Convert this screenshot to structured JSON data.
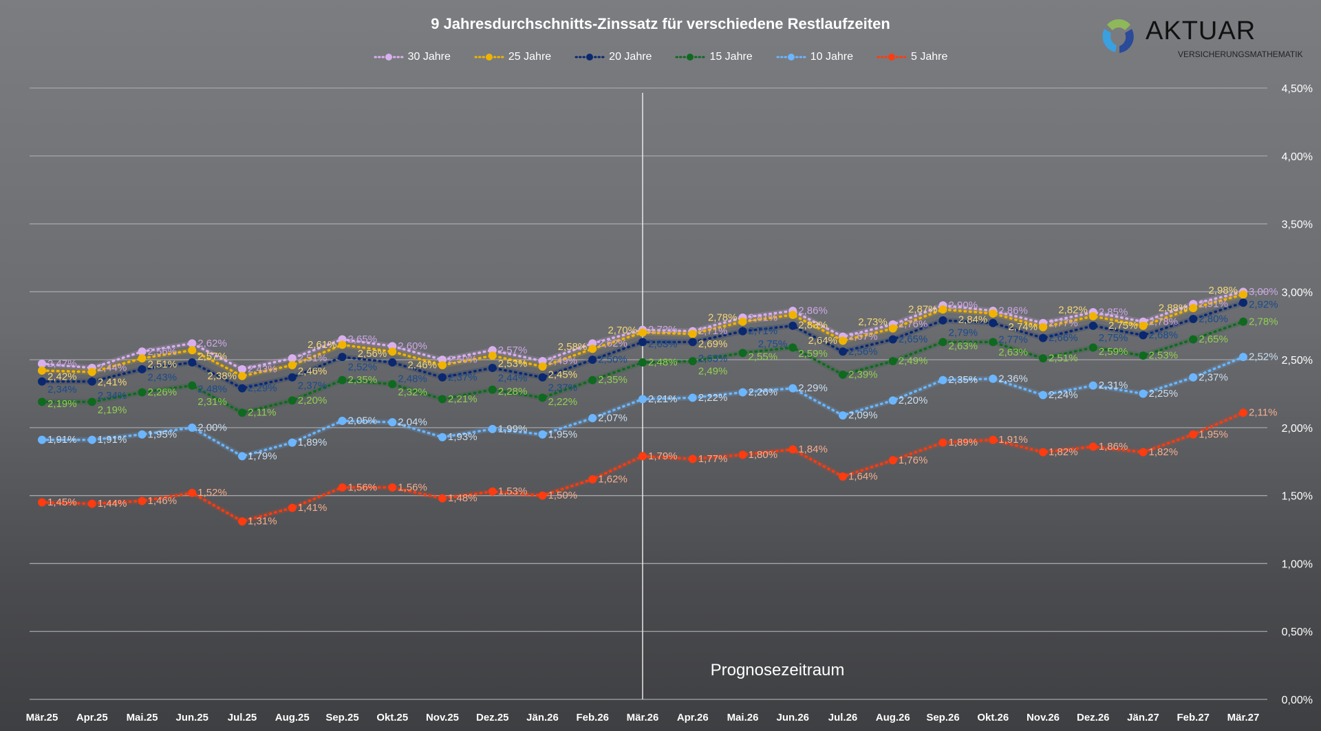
{
  "logo": {
    "name": "AKTUAR",
    "subtitle": "VERSICHERUNGSMATHEMATIK"
  },
  "chart_data": {
    "type": "line",
    "title": "9 Jahresdurchschnitts-Zinssatz für verschiedene Restlaufzeiten",
    "xlabel": "",
    "ylabel": "",
    "categories": [
      "Mär.25",
      "Apr.25",
      "Mai.25",
      "Jun.25",
      "Jul.25",
      "Aug.25",
      "Sep.25",
      "Okt.25",
      "Nov.25",
      "Dez.25",
      "Jän.26",
      "Feb.26",
      "Mär.26",
      "Apr.26",
      "Mai.26",
      "Jun.26",
      "Jul.26",
      "Aug.26",
      "Sep.26",
      "Okt.26",
      "Nov.26",
      "Dez.26",
      "Jän.27",
      "Feb.27",
      "Mär.27"
    ],
    "ylim": [
      0,
      4.5
    ],
    "y_ticks": [
      "0,00%",
      "0,50%",
      "1,00%",
      "1,50%",
      "2,00%",
      "2,50%",
      "3,00%",
      "3,50%",
      "4,00%",
      "4,50%"
    ],
    "y_axis_side": "right",
    "grid": true,
    "legend_position": "top",
    "annotation": {
      "text": "Prognosezeitraum",
      "at_category": "Mär.26"
    },
    "series": [
      {
        "name": "30 Jahre",
        "color": "#d9b0ee",
        "label_color": "#cfa8e6",
        "values": [
          2.47,
          2.44,
          2.56,
          2.62,
          2.43,
          2.51,
          2.65,
          2.6,
          2.5,
          2.57,
          2.49,
          2.62,
          2.72,
          2.71,
          2.81,
          2.86,
          2.67,
          2.76,
          2.9,
          2.86,
          2.77,
          2.85,
          2.78,
          2.91,
          3.0
        ]
      },
      {
        "name": "25 Jahre",
        "color": "#f0b400",
        "label_color": "#f6d878",
        "values": [
          2.42,
          2.41,
          2.51,
          2.57,
          2.38,
          2.46,
          2.61,
          2.56,
          2.46,
          2.53,
          2.45,
          2.58,
          2.7,
          2.69,
          2.78,
          2.83,
          2.64,
          2.73,
          2.87,
          2.84,
          2.74,
          2.82,
          2.75,
          2.88,
          2.98
        ]
      },
      {
        "name": "20 Jahre",
        "color": "#0a2870",
        "label_color": "#1a4a8c",
        "values": [
          2.34,
          2.34,
          2.43,
          2.48,
          2.29,
          2.37,
          2.52,
          2.48,
          2.37,
          2.44,
          2.37,
          2.5,
          2.63,
          2.63,
          2.71,
          2.75,
          2.56,
          2.65,
          2.79,
          2.77,
          2.66,
          2.75,
          2.68,
          2.8,
          2.92
        ]
      },
      {
        "name": "15 Jahre",
        "color": "#0e6a1e",
        "label_color": "#92d050",
        "values": [
          2.19,
          2.19,
          2.26,
          2.31,
          2.11,
          2.2,
          2.35,
          2.32,
          2.21,
          2.28,
          2.22,
          2.35,
          2.48,
          2.49,
          2.55,
          2.59,
          2.39,
          2.49,
          2.63,
          2.63,
          2.51,
          2.59,
          2.53,
          2.65,
          2.78
        ]
      },
      {
        "name": "10 Jahre",
        "color": "#6cb6ff",
        "label_color": "#cddff2",
        "values": [
          1.91,
          1.91,
          1.95,
          2.0,
          1.79,
          1.89,
          2.05,
          2.04,
          1.93,
          1.99,
          1.95,
          2.07,
          2.21,
          2.22,
          2.26,
          2.29,
          2.09,
          2.2,
          2.35,
          2.36,
          2.24,
          2.31,
          2.25,
          2.37,
          2.52
        ]
      },
      {
        "name": "5 Jahre",
        "color": "#ff3b0f",
        "label_color": "#f7ae90",
        "values": [
          1.45,
          1.44,
          1.46,
          1.52,
          1.31,
          1.41,
          1.56,
          1.56,
          1.48,
          1.53,
          1.5,
          1.62,
          1.79,
          1.77,
          1.8,
          1.84,
          1.64,
          1.76,
          1.89,
          1.91,
          1.82,
          1.86,
          1.82,
          1.95,
          2.11
        ]
      }
    ]
  }
}
